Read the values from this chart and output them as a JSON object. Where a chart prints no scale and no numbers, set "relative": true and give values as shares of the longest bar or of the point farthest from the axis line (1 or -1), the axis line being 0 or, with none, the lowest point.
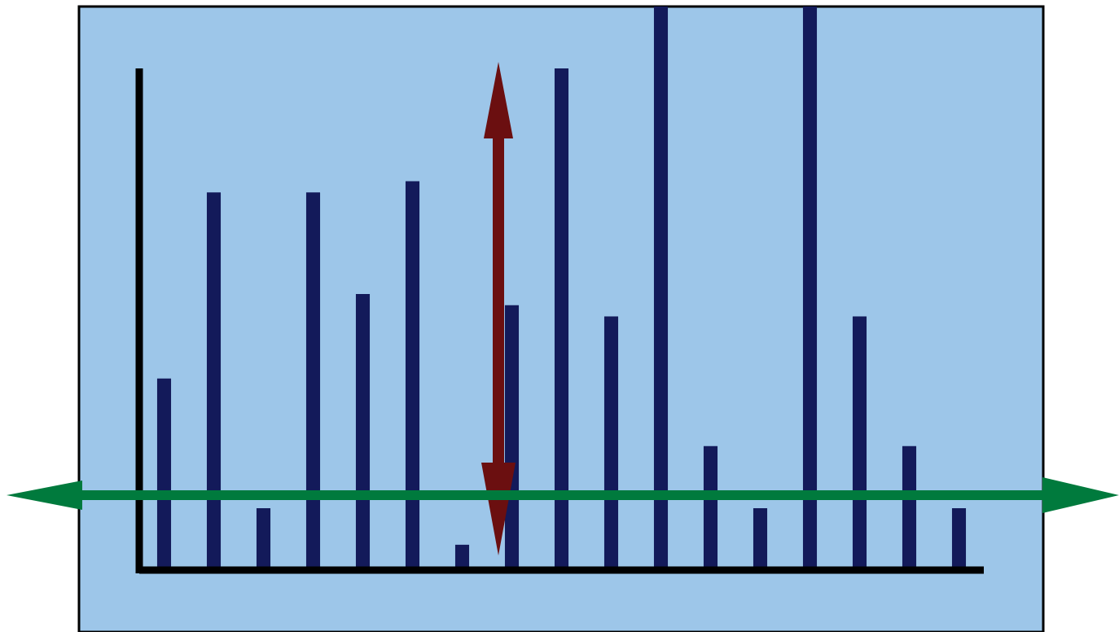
{
  "chart_data": {
    "type": "bar",
    "relative": true,
    "color": "#131a5a",
    "categories": [
      null,
      null,
      null,
      null,
      null,
      null,
      null,
      null,
      null,
      null,
      null,
      null,
      null,
      null,
      null,
      null,
      null
    ],
    "values": [
      0.34,
      0.67,
      0.11,
      0.67,
      0.49,
      0.69,
      0.045,
      0.47,
      0.89,
      0.45,
      1,
      0.22,
      0.11,
      1,
      0.45,
      0.22,
      0.11
    ]
  }
}
